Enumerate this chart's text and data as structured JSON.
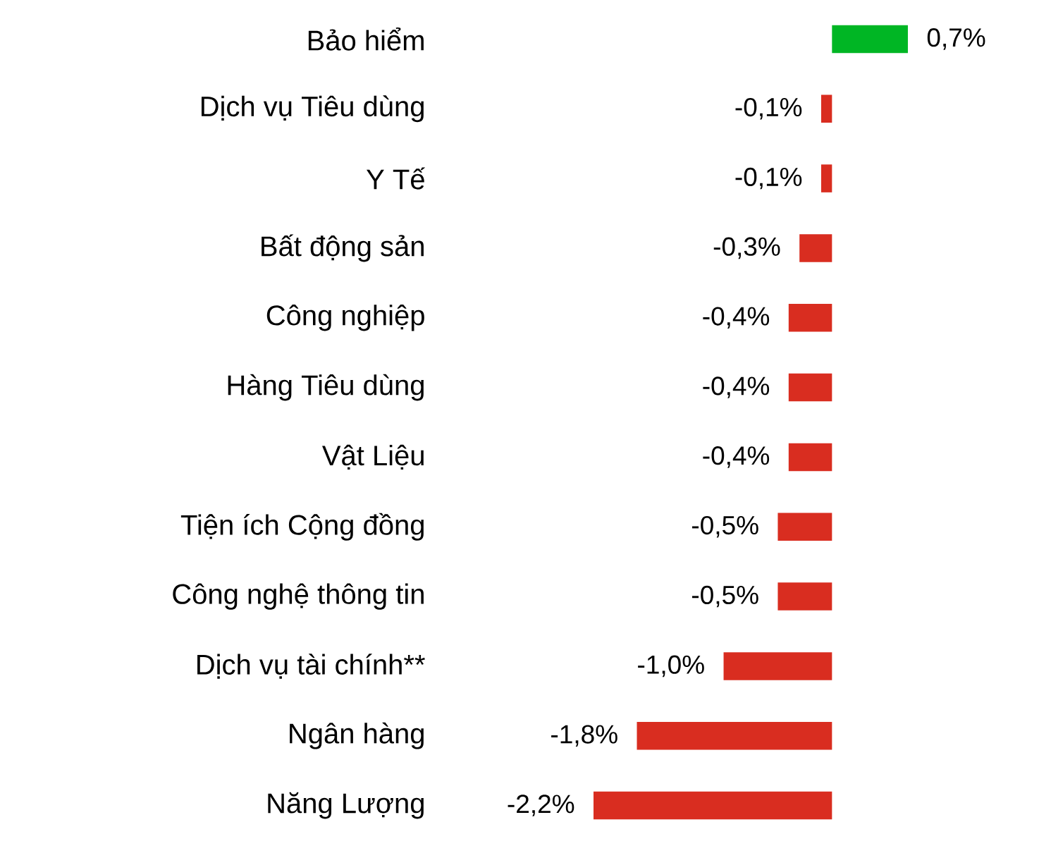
{
  "chart_data": {
    "type": "bar",
    "orientation": "horizontal",
    "categories": [
      "Bảo hiểm",
      "Dịch vụ Tiêu dùng",
      "Y Tế",
      "Bất động sản",
      "Công nghiệp",
      "Hàng Tiêu dùng",
      "Vật Liệu",
      "Tiện ích Cộng đồng",
      "Công nghệ thông tin",
      "Dịch vụ tài chính**",
      "Ngân hàng",
      "Năng Lượng"
    ],
    "values": [
      0.7,
      -0.1,
      -0.1,
      -0.3,
      -0.4,
      -0.4,
      -0.4,
      -0.5,
      -0.5,
      -1.0,
      -1.8,
      -2.2
    ],
    "colors": [
      "#00b624",
      "#d92d20",
      "#d92d20",
      "#d92d20",
      "#d92d20",
      "#d92d20",
      "#d92d20",
      "#d92d20",
      "#d92d20",
      "#d92d20",
      "#d92d20",
      "#d92d20"
    ],
    "value_labels": [
      "0,7%",
      "-0,1%",
      "-0,1%",
      "-0,3%",
      "-0,4%",
      "-0,4%",
      "-0,4%",
      "-0,5%",
      "-0,5%",
      "-1,0%",
      "-1,8%",
      "-2,2%"
    ]
  }
}
